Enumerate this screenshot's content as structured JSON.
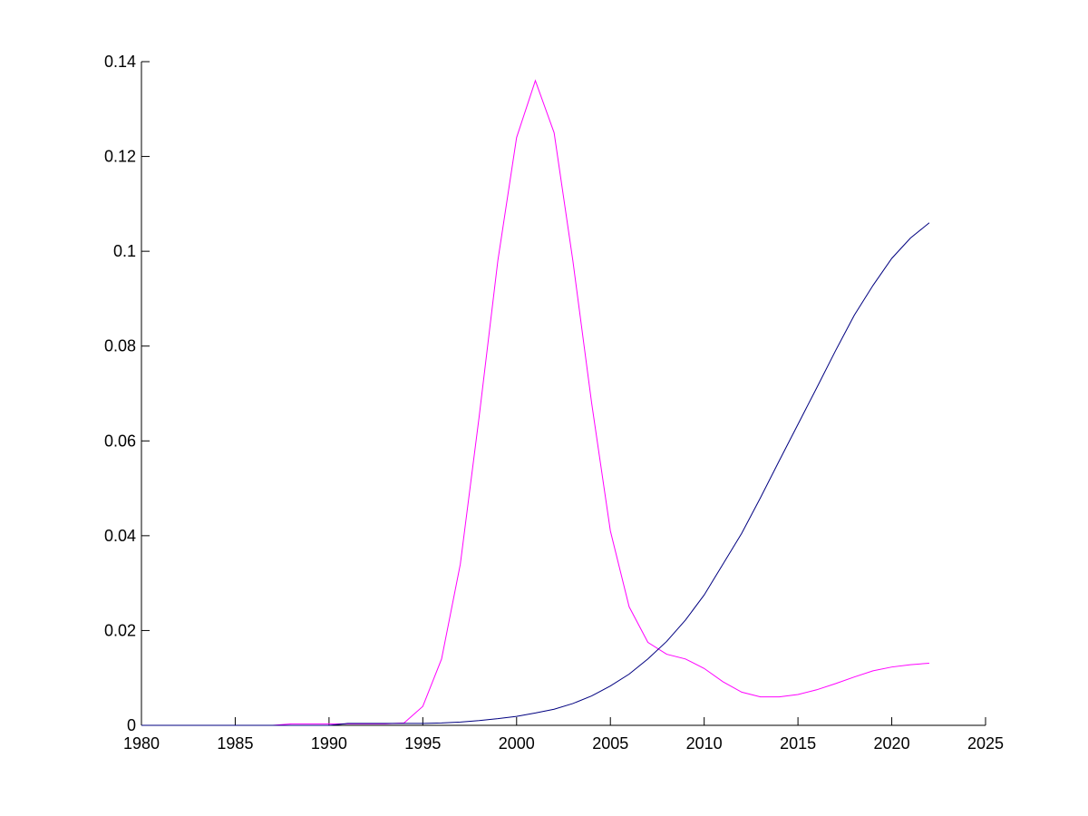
{
  "chart_data": {
    "type": "line",
    "x": [
      1980,
      1981,
      1982,
      1983,
      1984,
      1985,
      1986,
      1987,
      1988,
      1989,
      1990,
      1991,
      1992,
      1993,
      1994,
      1995,
      1996,
      1997,
      1998,
      1999,
      2000,
      2001,
      2002,
      2003,
      2004,
      2005,
      2006,
      2007,
      2008,
      2009,
      2010,
      2011,
      2012,
      2013,
      2014,
      2015,
      2016,
      2017,
      2018,
      2019,
      2020,
      2021,
      2022
    ],
    "series": [
      {
        "color": "#ff00ff",
        "values": [
          0,
          0,
          0,
          0,
          0,
          0,
          0,
          0,
          0.0003,
          0.0003,
          0.0003,
          0.0003,
          0.0003,
          0.0003,
          0.0005,
          0.004,
          0.014,
          0.034,
          0.065,
          0.098,
          0.124,
          0.136,
          0.125,
          0.098,
          0.068,
          0.041,
          0.025,
          0.0175,
          0.015,
          0.014,
          0.012,
          0.0092,
          0.007,
          0.006,
          0.006,
          0.0065,
          0.0075,
          0.0088,
          0.0102,
          0.0115,
          0.0123,
          0.0128,
          0.0131
        ]
      },
      {
        "color": "#000080",
        "values": [
          0,
          0,
          0,
          0,
          0,
          0,
          0,
          0,
          0,
          0,
          0,
          0.0004,
          0.0004,
          0.0004,
          0.0004,
          0.0004,
          0.0005,
          0.0007,
          0.001,
          0.0014,
          0.0019,
          0.0026,
          0.0034,
          0.0046,
          0.0062,
          0.0083,
          0.0108,
          0.014,
          0.0177,
          0.0222,
          0.0275,
          0.034,
          0.0405,
          0.048,
          0.0558,
          0.0635,
          0.0712,
          0.079,
          0.0865,
          0.0928,
          0.0985,
          0.1028,
          0.106
        ]
      }
    ],
    "xlim": [
      1980,
      2025
    ],
    "xticks": [
      1980,
      1985,
      1990,
      1995,
      2000,
      2005,
      2010,
      2015,
      2020,
      2025
    ],
    "ylim": [
      0,
      0.14
    ],
    "yticks": [
      0,
      0.02,
      0.04,
      0.06,
      0.08,
      0.1,
      0.12,
      0.14
    ]
  }
}
